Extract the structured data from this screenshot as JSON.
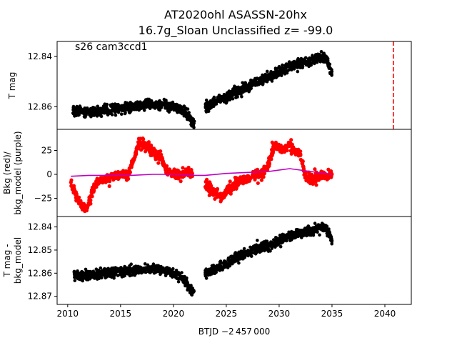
{
  "title_line1": "AT2020ohl  ASASSN-20hx",
  "title_line2": "16.7g_Sloan Unclassified z= -99.0",
  "annotation": "s26 cam3ccd1",
  "chart_data": [
    {
      "type": "scatter",
      "panel": "top",
      "ylabel": "T mag",
      "y_inverted": true,
      "ylim": [
        12.869,
        12.834
      ],
      "yticks": [
        12.84,
        12.86
      ],
      "ytick_labels": [
        "12.84",
        "12.86"
      ],
      "xlim": [
        2009,
        2042.5
      ],
      "series": [
        {
          "color": "#000000",
          "segments": [
            {
              "x": [
                2010.5,
                2012,
                2014,
                2016,
                2018,
                2020,
                2021,
                2021.5,
                2022
              ],
              "y": [
                12.862,
                12.862,
                12.861,
                12.86,
                12.859,
                12.86,
                12.862,
                12.864,
                12.867
              ]
            },
            {
              "x": [
                2023,
                2024,
                2025,
                2026,
                2027,
                2028,
                2029,
                2030,
                2031,
                2032,
                2033,
                2034,
                2034.5,
                2035
              ],
              "y": [
                12.86,
                12.858,
                12.856,
                12.854,
                12.852,
                12.85,
                12.848,
                12.846,
                12.844,
                12.843,
                12.842,
                12.84,
                12.841,
                12.847
              ]
            }
          ],
          "scatter": 0.0018
        }
      ],
      "vline": {
        "x": 2040.8,
        "color": "#ff0000",
        "style": "dashed"
      }
    },
    {
      "type": "scatter",
      "panel": "middle",
      "ylabel": "Bkg (red)/\nbkg_model (purple)",
      "ylim": [
        -44,
        47
      ],
      "yticks": [
        25,
        0,
        -25
      ],
      "ytick_labels": [
        "25",
        "0",
        "−25"
      ],
      "xlim": [
        2009,
        2042.5
      ],
      "series": [
        {
          "name": "Bkg",
          "color": "#ff0000",
          "segments": [
            {
              "x": [
                2010.3,
                2010.8,
                2011.3,
                2011.8,
                2012.3,
                2012.8,
                2013.3,
                2013.8,
                2014.3,
                2014.8,
                2015.3,
                2015.8,
                2016.3,
                2016.8,
                2017.3,
                2017.8,
                2018.3,
                2018.8,
                2019.3,
                2019.8,
                2020.3,
                2020.8,
                2021.3,
                2021.8
              ],
              "y": [
                -10,
                -22,
                -32,
                -36,
                -18,
                -8,
                -5,
                -4,
                -2,
                -1,
                0,
                2,
                18,
                35,
                30,
                28,
                22,
                18,
                5,
                0,
                1,
                0,
                2,
                0
              ]
            },
            {
              "x": [
                2023,
                2023.5,
                2024,
                2024.5,
                2025,
                2025.5,
                2026,
                2026.5,
                2027,
                2027.5,
                2028,
                2028.5,
                2029,
                2029.5,
                2030,
                2030.5,
                2031,
                2031.5,
                2032,
                2032.5,
                2033,
                2033.5,
                2034,
                2034.5,
                2035
              ],
              "y": [
                -10,
                -15,
                -20,
                -24,
                -18,
                -14,
                -8,
                -6,
                -5,
                -2,
                0,
                2,
                10,
                30,
                28,
                26,
                32,
                25,
                22,
                -3,
                -5,
                -4,
                -3,
                -2,
                0
              ]
            }
          ],
          "scatter": 3.5
        },
        {
          "name": "bkg_model",
          "color": "#bf00bf",
          "line": {
            "x": [
              2010.3,
              2012,
              2014,
              2016,
              2018,
              2020,
              2022,
              2023,
              2025,
              2027,
              2029,
              2031,
              2033,
              2035
            ],
            "y": [
              -2,
              -1,
              -1,
              -1,
              0,
              0,
              -1,
              -1,
              1,
              2,
              3,
              6,
              3,
              0
            ]
          }
        }
      ]
    },
    {
      "type": "scatter",
      "panel": "bottom",
      "ylabel": "T mag -\nbkg_model",
      "y_inverted": true,
      "ylim": [
        12.8735,
        12.8355
      ],
      "yticks": [
        12.84,
        12.85,
        12.86,
        12.87
      ],
      "ytick_labels": [
        "12.84",
        "12.85",
        "12.86",
        "12.87"
      ],
      "xlim": [
        2009,
        2042.5
      ],
      "xticks": [
        2010,
        2015,
        2020,
        2025,
        2030,
        2035,
        2040
      ],
      "xtick_labels": [
        "2010",
        "2015",
        "2020",
        "2025",
        "2030",
        "2035",
        "2040"
      ],
      "xlabel": "BTJD −2 457 000",
      "series": [
        {
          "color": "#000000",
          "segments": [
            {
              "x": [
                2010.5,
                2012,
                2014,
                2016,
                2018,
                2020,
                2021,
                2021.5,
                2022
              ],
              "y": [
                12.861,
                12.861,
                12.86,
                12.859,
                12.858,
                12.86,
                12.863,
                12.866,
                12.869
              ]
            },
            {
              "x": [
                2023,
                2024,
                2025,
                2026,
                2027,
                2028,
                2029,
                2030,
                2031,
                2032,
                2033,
                2034,
                2034.5,
                2035
              ],
              "y": [
                12.86,
                12.858,
                12.856,
                12.853,
                12.851,
                12.849,
                12.848,
                12.846,
                12.844,
                12.843,
                12.842,
                12.84,
                12.841,
                12.846
              ]
            }
          ],
          "scatter": 0.0019
        }
      ]
    }
  ]
}
